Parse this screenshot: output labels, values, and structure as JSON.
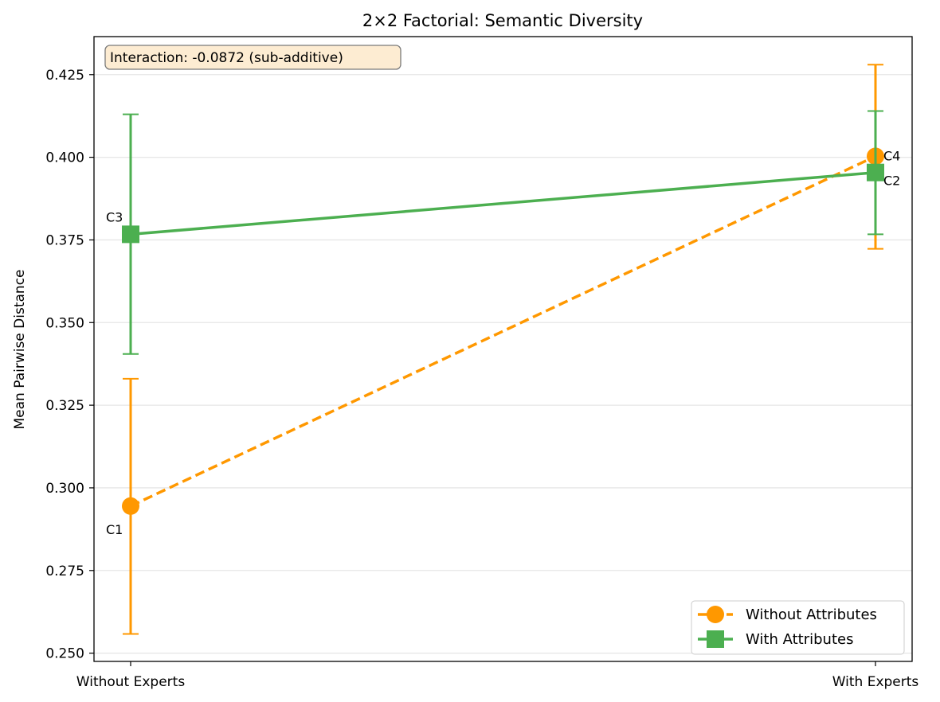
{
  "chart_data": {
    "type": "line",
    "title": "2×2 Factorial: Semantic Diversity",
    "xlabel": "",
    "ylabel": "Mean Pairwise Distance",
    "categories": [
      "Without Experts",
      "With Experts"
    ],
    "ylim": [
      0.2475,
      0.4365
    ],
    "yticks": [
      "0.250",
      "0.275",
      "0.300",
      "0.325",
      "0.350",
      "0.375",
      "0.400",
      "0.425"
    ],
    "grid": "horizontal",
    "legend_position": "bottom-right",
    "annotation": "Interaction: -0.0872 (sub-additive)",
    "series": [
      {
        "name": "Without Attributes",
        "color": "#ff9800",
        "marker": "circle",
        "line_style": "dashed",
        "values": [
          0.2945,
          0.4003
        ],
        "error_low": [
          0.2558,
          0.3723
        ],
        "error_high": [
          0.333,
          0.428
        ],
        "point_labels": [
          "C1",
          "C4"
        ]
      },
      {
        "name": "With Attributes",
        "color": "#4caf50",
        "marker": "square",
        "line_style": "solid",
        "values": [
          0.3767,
          0.3954
        ],
        "error_low": [
          0.3405,
          0.3767
        ],
        "error_high": [
          0.413,
          0.414
        ],
        "point_labels": [
          "C3",
          "C2"
        ]
      }
    ]
  }
}
